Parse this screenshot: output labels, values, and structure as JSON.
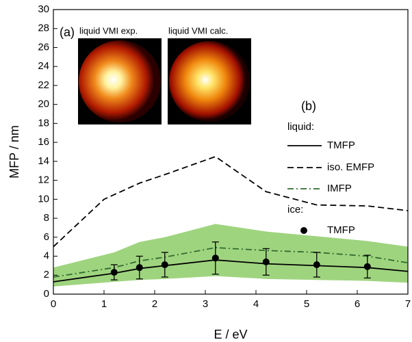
{
  "chart_data": {
    "type": "line",
    "xlabel": "E / eV",
    "ylabel": "MFP / nm",
    "xlim": [
      0,
      7
    ],
    "ylim": [
      0,
      30
    ],
    "xticks": [
      0,
      1,
      2,
      3,
      4,
      5,
      6,
      7
    ],
    "yticks": [
      0,
      2,
      4,
      6,
      8,
      10,
      12,
      14,
      16,
      18,
      20,
      22,
      24,
      26,
      28,
      30
    ],
    "panel_a": "(a)",
    "inset_labels": [
      "liquid VMI exp.",
      "liquid VMI calc."
    ],
    "legend_title": "(b)",
    "legend_headers": [
      "liquid:",
      "ice:"
    ],
    "band": {
      "color": "#9fd47f",
      "x": [
        0,
        1.2,
        1.7,
        2.2,
        3.2,
        4.2,
        5.2,
        6.2,
        7
      ],
      "upper": [
        2.8,
        4.4,
        5.5,
        6.0,
        7.4,
        6.6,
        6.1,
        5.6,
        5.0
      ],
      "lower": [
        0.8,
        1.3,
        1.5,
        1.6,
        1.9,
        1.6,
        1.5,
        1.4,
        1.2
      ]
    },
    "series": [
      {
        "name": "TMFP",
        "color": "#000000",
        "dash": "solid",
        "x": [
          0,
          1.2,
          1.7,
          2.2,
          3.2,
          4.2,
          5.2,
          6.2,
          7
        ],
        "values": [
          1.3,
          2.2,
          2.7,
          3.0,
          3.6,
          3.2,
          3.0,
          2.8,
          2.4
        ]
      },
      {
        "name": "iso. EMFP",
        "color": "#000000",
        "dash": "dashed",
        "x": [
          0,
          1,
          1.7,
          2.2,
          3.2,
          4.2,
          5.2,
          6.2,
          7
        ],
        "values": [
          5.0,
          10.0,
          11.7,
          12.6,
          14.5,
          10.8,
          9.4,
          9.3,
          8.8
        ]
      },
      {
        "name": "IMFP",
        "color": "#2f6b2f",
        "dash": "dashdot",
        "x": [
          0,
          1.2,
          1.7,
          2.2,
          3.2,
          4.2,
          5.2,
          6.2,
          7
        ],
        "values": [
          1.8,
          2.8,
          3.5,
          3.9,
          4.9,
          4.6,
          4.4,
          4.0,
          3.3
        ]
      },
      {
        "name": "TMFP",
        "color": "#000000",
        "marker": "circle",
        "x": [
          1.2,
          1.7,
          2.2,
          3.2,
          4.2,
          5.2,
          6.2
        ],
        "values": [
          2.3,
          2.8,
          3.1,
          3.8,
          3.4,
          3.1,
          2.9
        ],
        "errors": [
          0.8,
          1.2,
          1.3,
          1.7,
          1.4,
          1.3,
          1.2
        ]
      }
    ]
  }
}
